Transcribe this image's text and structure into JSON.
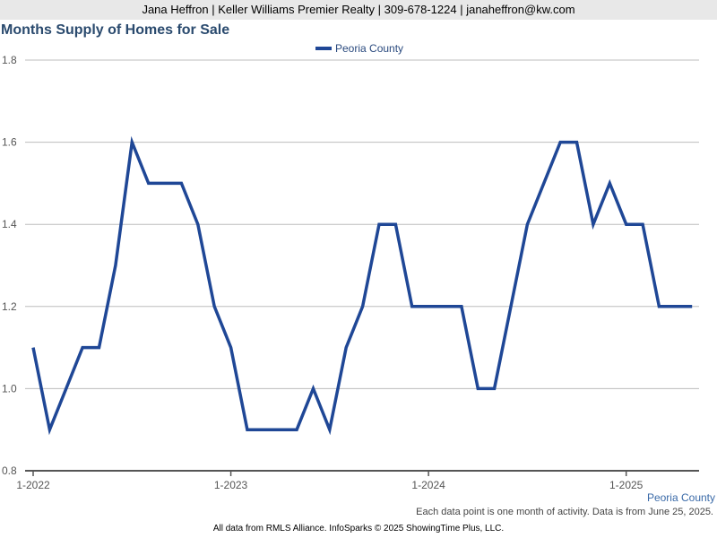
{
  "banner": {
    "text": "Jana Heffron | Keller Williams Premier Realty | 309-678-1224 | janaheffron@kw.com"
  },
  "footer": {
    "series_tag": "Peoria County",
    "data_note": "Each data point is one month of activity. Data is from June 25, 2025.",
    "credit": "All data from RMLS Alliance. InfoSparks © 2025 ShowingTime Plus, LLC."
  },
  "colors": {
    "series": "#1f4796",
    "title": "#2a4a6e",
    "banner_bg": "#e8e8e8"
  },
  "chart_data": {
    "type": "line",
    "title": "Months Supply of Homes for Sale",
    "xlabel": "",
    "ylabel": "",
    "ylim": [
      0.8,
      1.8
    ],
    "yticks": [
      "0.8",
      "1.0",
      "1.2",
      "1.4",
      "1.6",
      "1.8"
    ],
    "xticks": [
      {
        "label": "1-2022",
        "index": 0
      },
      {
        "label": "1-2023",
        "index": 12
      },
      {
        "label": "1-2024",
        "index": 24
      },
      {
        "label": "1-2025",
        "index": 36
      }
    ],
    "grid": true,
    "legend_position": "top-center",
    "x": [
      "2022-01",
      "2022-02",
      "2022-03",
      "2022-04",
      "2022-05",
      "2022-06",
      "2022-07",
      "2022-08",
      "2022-09",
      "2022-10",
      "2022-11",
      "2022-12",
      "2023-01",
      "2023-02",
      "2023-03",
      "2023-04",
      "2023-05",
      "2023-06",
      "2023-07",
      "2023-08",
      "2023-09",
      "2023-10",
      "2023-11",
      "2023-12",
      "2024-01",
      "2024-02",
      "2024-03",
      "2024-04",
      "2024-05",
      "2024-06",
      "2024-07",
      "2024-08",
      "2024-09",
      "2024-10",
      "2024-11",
      "2024-12",
      "2025-01",
      "2025-02",
      "2025-03",
      "2025-04",
      "2025-05"
    ],
    "series": [
      {
        "name": "Peoria County",
        "color": "#1f4796",
        "values": [
          1.1,
          0.9,
          1.0,
          1.1,
          1.1,
          1.3,
          1.6,
          1.5,
          1.5,
          1.5,
          1.4,
          1.2,
          1.1,
          0.9,
          0.9,
          0.9,
          0.9,
          1.0,
          0.9,
          1.1,
          1.2,
          1.4,
          1.4,
          1.2,
          1.2,
          1.2,
          1.2,
          1.0,
          1.0,
          1.2,
          1.4,
          1.5,
          1.6,
          1.6,
          1.4,
          1.5,
          1.4,
          1.4,
          1.2,
          1.2,
          1.2
        ]
      }
    ]
  }
}
